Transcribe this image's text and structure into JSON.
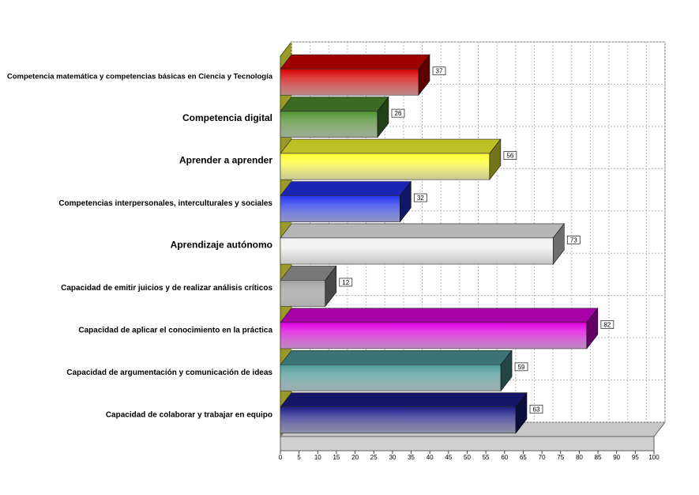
{
  "chart_data": {
    "type": "bar",
    "orientation": "horizontal",
    "style": "3d",
    "title": "",
    "xlabel": "",
    "ylabel": "",
    "xlim": [
      0,
      100
    ],
    "tick_labels": [
      "0",
      "5",
      "10",
      "15",
      "20",
      "25",
      "30",
      "35",
      "40",
      "45",
      "50",
      "55",
      "60",
      "65",
      "70",
      "75",
      "80",
      "85",
      "90",
      "95",
      "100"
    ],
    "grid": true,
    "legend": "none",
    "categories": [
      "Competencia matemática y competencias básicas en Ciencia y Tecnología",
      "Competencia digital",
      "Aprender a aprender",
      "Competencias interpersonales, interculturales y sociales",
      "Aprendizaje autónomo",
      "Capacidad de emitir juicios y de realizar análisis críticos",
      "Capacidad de aplicar el conocimiento en la práctica",
      "Capacidad de argumentación y comunicación de ideas",
      "Capacidad de colaborar y trabajar en equipo"
    ],
    "values": [
      37,
      26,
      56,
      32,
      73,
      12,
      82,
      59,
      63
    ],
    "value_labels": [
      "37",
      "26",
      "56",
      "32",
      "73",
      "12",
      "82",
      "59",
      "63"
    ],
    "colors": [
      "#d40000",
      "#4f8f2f",
      "#ffff33",
      "#2233ee",
      "#f2f2f2",
      "#a0a0a0",
      "#dd00dd",
      "#4f9a9a",
      "#1c1c88"
    ]
  }
}
